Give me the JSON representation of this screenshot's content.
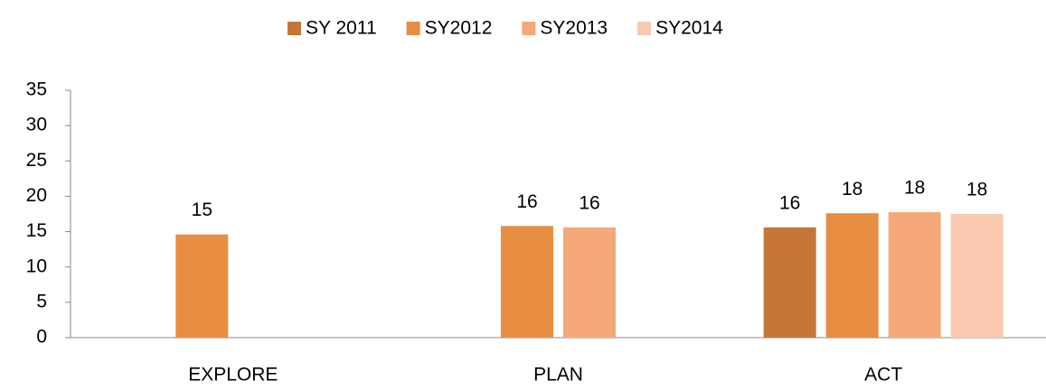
{
  "chart_data": {
    "type": "bar",
    "categories": [
      "EXPLORE",
      "PLAN",
      "ACT"
    ],
    "series": [
      {
        "name": "SY 2011",
        "color": "#c57636",
        "values": [
          null,
          null,
          15.6
        ],
        "value_labels": [
          null,
          null,
          "16"
        ]
      },
      {
        "name": "SY2012",
        "color": "#e88e43",
        "values": [
          14.6,
          15.8,
          17.6
        ],
        "value_labels": [
          "15",
          "16",
          "18"
        ]
      },
      {
        "name": "SY2013",
        "color": "#f5a878",
        "values": [
          null,
          15.6,
          17.75
        ],
        "value_labels": [
          null,
          "16",
          "18"
        ]
      },
      {
        "name": "SY2014",
        "color": "#f8c9b0",
        "values": [
          null,
          null,
          17.5
        ],
        "value_labels": [
          null,
          null,
          "18"
        ]
      }
    ],
    "ylim": [
      0,
      35
    ],
    "yticks": [
      0,
      5,
      10,
      15,
      20,
      25,
      30,
      35
    ],
    "grid": false,
    "legend": "top"
  }
}
